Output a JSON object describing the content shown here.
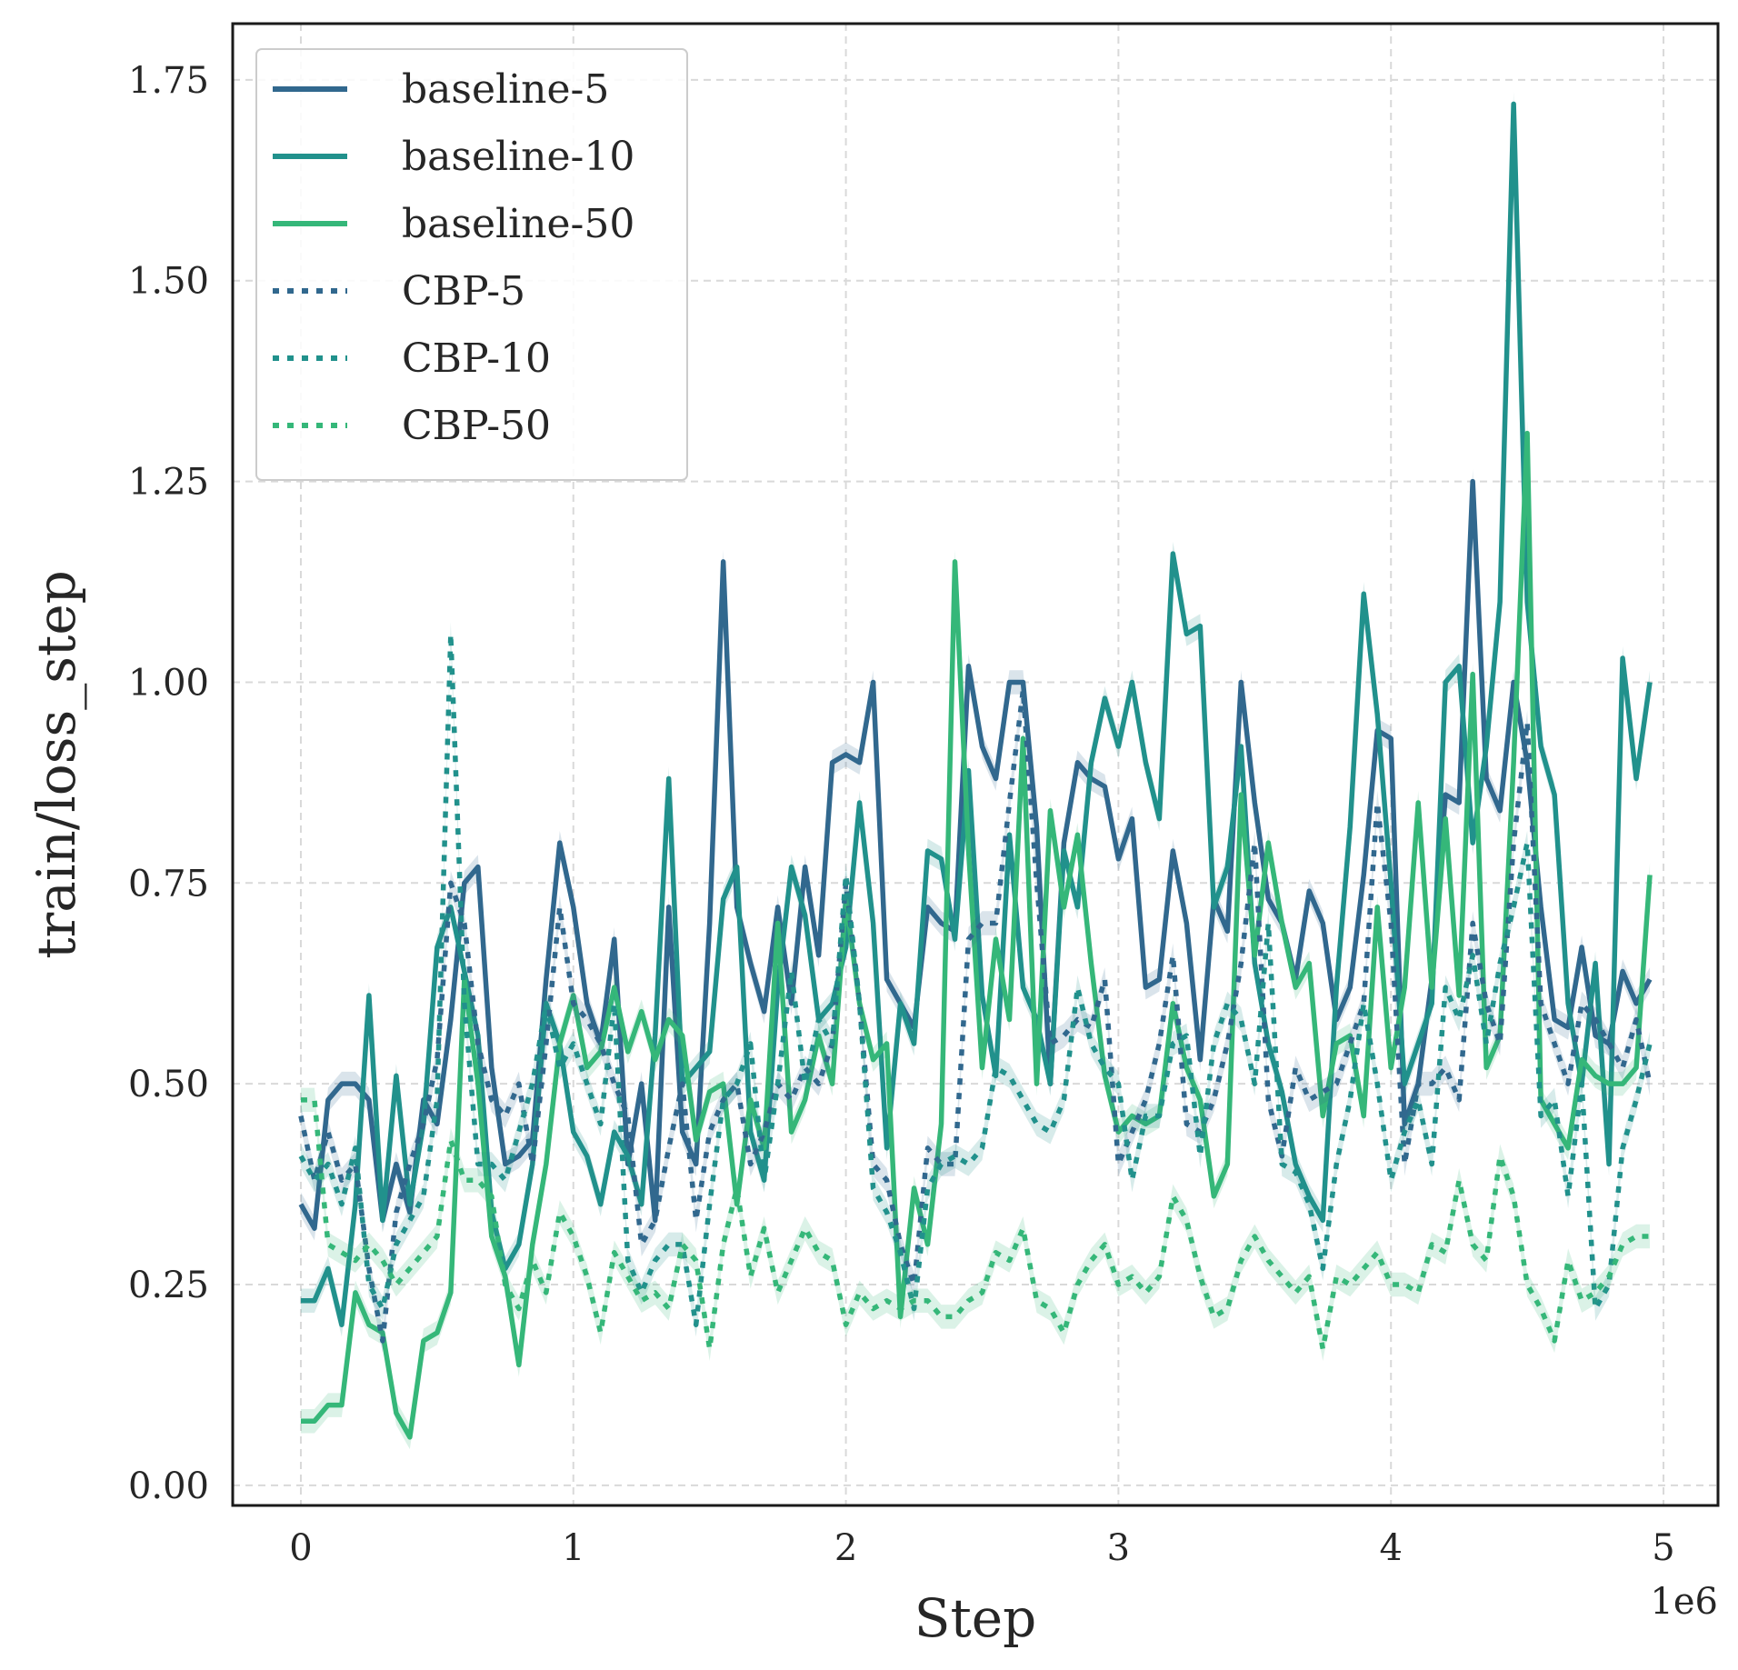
{
  "chart_data": {
    "type": "line",
    "title": "",
    "xlabel": "Step",
    "ylabel": "train/loss_step",
    "x_offset_label": "1e6",
    "xlim": [
      -0.25,
      5.2
    ],
    "ylim": [
      -0.025,
      1.82
    ],
    "x_scale": 1000000,
    "xticks": [
      0,
      1,
      2,
      3,
      4,
      5
    ],
    "xtick_labels": [
      "0",
      "1",
      "2",
      "3",
      "4",
      "5"
    ],
    "yticks": [
      0.0,
      0.25,
      0.5,
      0.75,
      1.0,
      1.25,
      1.5,
      1.75
    ],
    "ytick_labels": [
      "0.00",
      "0.25",
      "0.50",
      "0.75",
      "1.00",
      "1.25",
      "1.50",
      "1.75"
    ],
    "grid": true,
    "legend_position": "top-left",
    "x": [
      0,
      0.05,
      0.1,
      0.15,
      0.2,
      0.25,
      0.3,
      0.35,
      0.4,
      0.45,
      0.5,
      0.55,
      0.6,
      0.65,
      0.7,
      0.75,
      0.8,
      0.85,
      0.9,
      0.95,
      1.0,
      1.05,
      1.1,
      1.15,
      1.2,
      1.25,
      1.3,
      1.35,
      1.4,
      1.45,
      1.5,
      1.55,
      1.6,
      1.65,
      1.7,
      1.75,
      1.8,
      1.85,
      1.9,
      1.95,
      2.0,
      2.05,
      2.1,
      2.15,
      2.2,
      2.25,
      2.3,
      2.35,
      2.4,
      2.45,
      2.5,
      2.55,
      2.6,
      2.65,
      2.7,
      2.75,
      2.8,
      2.85,
      2.9,
      2.95,
      3.0,
      3.05,
      3.1,
      3.15,
      3.2,
      3.25,
      3.3,
      3.35,
      3.4,
      3.45,
      3.5,
      3.55,
      3.6,
      3.65,
      3.7,
      3.75,
      3.8,
      3.85,
      3.9,
      3.95,
      4.0,
      4.05,
      4.1,
      4.15,
      4.2,
      4.25,
      4.3,
      4.35,
      4.4,
      4.45,
      4.5,
      4.55,
      4.6,
      4.65,
      4.7,
      4.75,
      4.8,
      4.85,
      4.9,
      4.95
    ],
    "series": [
      {
        "name": "baseline-5",
        "style": "solid",
        "color": "#31688e",
        "values": [
          0.35,
          0.32,
          0.48,
          0.5,
          0.5,
          0.48,
          0.33,
          0.4,
          0.34,
          0.48,
          0.45,
          0.58,
          0.75,
          0.77,
          0.52,
          0.4,
          0.41,
          0.43,
          0.63,
          0.8,
          0.72,
          0.6,
          0.55,
          0.68,
          0.4,
          0.5,
          0.33,
          0.72,
          0.44,
          0.4,
          0.7,
          1.15,
          0.72,
          0.65,
          0.59,
          0.72,
          0.6,
          0.77,
          0.66,
          0.9,
          0.91,
          0.9,
          1.0,
          0.63,
          0.6,
          0.57,
          0.72,
          0.7,
          0.69,
          1.02,
          0.92,
          0.88,
          1.0,
          1.0,
          0.82,
          0.5,
          0.8,
          0.9,
          0.88,
          0.87,
          0.78,
          0.83,
          0.62,
          0.63,
          0.79,
          0.7,
          0.53,
          0.73,
          0.69,
          1.0,
          0.85,
          0.73,
          0.7,
          0.63,
          0.74,
          0.7,
          0.58,
          0.62,
          0.76,
          0.94,
          0.93,
          0.45,
          0.5,
          0.63,
          0.86,
          0.85,
          1.25,
          0.88,
          0.84,
          1.0,
          0.9,
          0.72,
          0.58,
          0.57,
          0.67,
          0.56,
          0.55,
          0.64,
          0.6,
          0.63
        ]
      },
      {
        "name": "baseline-10",
        "style": "solid",
        "color": "#21918c",
        "values": [
          0.23,
          0.23,
          0.27,
          0.2,
          0.35,
          0.61,
          0.33,
          0.51,
          0.35,
          0.45,
          0.67,
          0.72,
          0.64,
          0.56,
          0.34,
          0.27,
          0.3,
          0.4,
          0.6,
          0.55,
          0.44,
          0.41,
          0.35,
          0.44,
          0.41,
          0.35,
          0.56,
          0.88,
          0.5,
          0.52,
          0.54,
          0.73,
          0.77,
          0.44,
          0.38,
          0.62,
          0.77,
          0.71,
          0.58,
          0.6,
          0.67,
          0.85,
          0.7,
          0.42,
          0.6,
          0.55,
          0.79,
          0.78,
          0.68,
          0.89,
          0.61,
          0.51,
          0.81,
          0.62,
          0.58,
          0.5,
          0.79,
          0.72,
          0.9,
          0.98,
          0.92,
          1.0,
          0.9,
          0.83,
          1.16,
          1.06,
          1.07,
          0.72,
          0.77,
          0.92,
          0.65,
          0.55,
          0.49,
          0.4,
          0.36,
          0.33,
          0.62,
          0.82,
          1.11,
          0.96,
          0.75,
          0.5,
          0.55,
          0.6,
          1.0,
          1.02,
          0.8,
          0.92,
          1.1,
          1.72,
          1.1,
          0.92,
          0.86,
          0.6,
          0.5,
          0.65,
          0.4,
          1.03,
          0.88,
          1.0
        ]
      },
      {
        "name": "baseline-50",
        "style": "solid",
        "color": "#35b779",
        "values": [
          0.08,
          0.08,
          0.1,
          0.1,
          0.24,
          0.2,
          0.19,
          0.09,
          0.06,
          0.18,
          0.19,
          0.24,
          0.63,
          0.5,
          0.31,
          0.26,
          0.15,
          0.3,
          0.4,
          0.55,
          0.61,
          0.52,
          0.54,
          0.62,
          0.54,
          0.59,
          0.53,
          0.58,
          0.56,
          0.43,
          0.49,
          0.5,
          0.35,
          0.48,
          0.42,
          0.7,
          0.44,
          0.48,
          0.56,
          0.5,
          0.73,
          0.6,
          0.53,
          0.55,
          0.21,
          0.37,
          0.3,
          0.45,
          1.15,
          0.79,
          0.52,
          0.68,
          0.58,
          0.93,
          0.5,
          0.84,
          0.72,
          0.81,
          0.65,
          0.51,
          0.44,
          0.46,
          0.45,
          0.46,
          0.6,
          0.52,
          0.48,
          0.36,
          0.4,
          0.86,
          0.66,
          0.8,
          0.7,
          0.62,
          0.65,
          0.46,
          0.55,
          0.56,
          0.46,
          0.72,
          0.52,
          0.62,
          0.85,
          0.62,
          0.83,
          0.61,
          1.01,
          0.52,
          0.56,
          0.9,
          1.31,
          0.48,
          0.45,
          0.42,
          0.53,
          0.51,
          0.5,
          0.5,
          0.52,
          0.76
        ]
      },
      {
        "name": "CBP-5",
        "style": "dotted",
        "color": "#31688e",
        "values": [
          0.46,
          0.38,
          0.44,
          0.38,
          0.4,
          0.27,
          0.18,
          0.34,
          0.4,
          0.45,
          0.53,
          0.75,
          0.7,
          0.55,
          0.48,
          0.46,
          0.5,
          0.4,
          0.55,
          0.72,
          0.6,
          0.58,
          0.55,
          0.5,
          0.46,
          0.3,
          0.33,
          0.42,
          0.5,
          0.33,
          0.44,
          0.48,
          0.5,
          0.4,
          0.44,
          0.5,
          0.48,
          0.52,
          0.5,
          0.55,
          0.75,
          0.6,
          0.4,
          0.38,
          0.3,
          0.25,
          0.42,
          0.4,
          0.4,
          0.68,
          0.7,
          0.7,
          0.85,
          0.99,
          0.75,
          0.55,
          0.56,
          0.58,
          0.57,
          0.63,
          0.4,
          0.44,
          0.48,
          0.55,
          0.66,
          0.45,
          0.44,
          0.48,
          0.55,
          0.65,
          0.8,
          0.48,
          0.41,
          0.52,
          0.48,
          0.49,
          0.5,
          0.55,
          0.6,
          0.85,
          0.7,
          0.4,
          0.5,
          0.5,
          0.52,
          0.48,
          0.7,
          0.6,
          0.55,
          0.8,
          0.95,
          0.6,
          0.55,
          0.5,
          0.6,
          0.58,
          0.55,
          0.52,
          0.58,
          0.5
        ]
      },
      {
        "name": "CBP-10",
        "style": "dotted",
        "color": "#21918c",
        "values": [
          0.41,
          0.38,
          0.4,
          0.35,
          0.42,
          0.25,
          0.22,
          0.3,
          0.33,
          0.36,
          0.48,
          1.06,
          0.6,
          0.4,
          0.4,
          0.38,
          0.44,
          0.5,
          0.6,
          0.52,
          0.55,
          0.5,
          0.45,
          0.6,
          0.28,
          0.24,
          0.28,
          0.3,
          0.3,
          0.2,
          0.35,
          0.48,
          0.5,
          0.55,
          0.38,
          0.5,
          0.64,
          0.5,
          0.58,
          0.55,
          0.76,
          0.6,
          0.37,
          0.34,
          0.29,
          0.22,
          0.37,
          0.4,
          0.41,
          0.4,
          0.42,
          0.52,
          0.51,
          0.48,
          0.45,
          0.44,
          0.48,
          0.62,
          0.55,
          0.52,
          0.5,
          0.38,
          0.46,
          0.46,
          0.55,
          0.56,
          0.41,
          0.55,
          0.6,
          0.58,
          0.5,
          0.7,
          0.4,
          0.39,
          0.35,
          0.27,
          0.4,
          0.48,
          0.6,
          0.5,
          0.38,
          0.44,
          0.48,
          0.4,
          0.62,
          0.58,
          0.66,
          0.55,
          0.65,
          0.72,
          0.8,
          0.46,
          0.48,
          0.36,
          0.5,
          0.22,
          0.25,
          0.42,
          0.48,
          0.55
        ]
      },
      {
        "name": "CBP-50",
        "style": "dotted",
        "color": "#35b779",
        "values": [
          0.48,
          0.48,
          0.3,
          0.29,
          0.28,
          0.3,
          0.28,
          0.25,
          0.27,
          0.29,
          0.31,
          0.43,
          0.38,
          0.38,
          0.36,
          0.25,
          0.22,
          0.28,
          0.24,
          0.34,
          0.31,
          0.26,
          0.19,
          0.29,
          0.26,
          0.23,
          0.24,
          0.22,
          0.3,
          0.28,
          0.17,
          0.3,
          0.37,
          0.26,
          0.32,
          0.24,
          0.28,
          0.32,
          0.29,
          0.28,
          0.2,
          0.24,
          0.22,
          0.23,
          0.22,
          0.23,
          0.23,
          0.21,
          0.21,
          0.23,
          0.24,
          0.29,
          0.28,
          0.32,
          0.23,
          0.22,
          0.19,
          0.25,
          0.28,
          0.3,
          0.25,
          0.26,
          0.24,
          0.26,
          0.36,
          0.33,
          0.26,
          0.21,
          0.22,
          0.28,
          0.31,
          0.28,
          0.26,
          0.24,
          0.26,
          0.17,
          0.26,
          0.25,
          0.27,
          0.29,
          0.25,
          0.25,
          0.24,
          0.3,
          0.29,
          0.38,
          0.3,
          0.28,
          0.41,
          0.36,
          0.25,
          0.22,
          0.18,
          0.28,
          0.23,
          0.24,
          0.26,
          0.3,
          0.31,
          0.31
        ]
      }
    ]
  }
}
